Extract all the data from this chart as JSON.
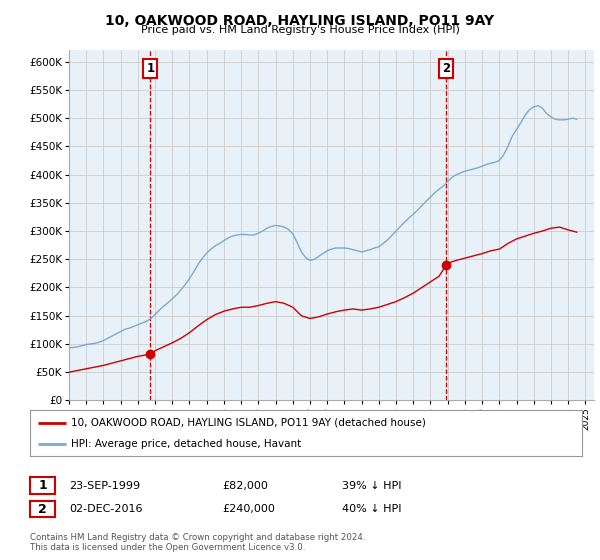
{
  "title": "10, OAKWOOD ROAD, HAYLING ISLAND, PO11 9AY",
  "subtitle": "Price paid vs. HM Land Registry's House Price Index (HPI)",
  "ylabel_ticks": [
    "£0",
    "£50K",
    "£100K",
    "£150K",
    "£200K",
    "£250K",
    "£300K",
    "£350K",
    "£400K",
    "£450K",
    "£500K",
    "£550K",
    "£600K"
  ],
  "yvalues": [
    0,
    50000,
    100000,
    150000,
    200000,
    250000,
    300000,
    350000,
    400000,
    450000,
    500000,
    550000,
    600000
  ],
  "xlim_start": 1995.0,
  "xlim_end": 2025.5,
  "ylim_min": 0,
  "ylim_max": 620000,
  "transaction1_date": 1999.73,
  "transaction1_price": 82000,
  "transaction2_date": 2016.92,
  "transaction2_price": 240000,
  "legend_line1": "10, OAKWOOD ROAD, HAYLING ISLAND, PO11 9AY (detached house)",
  "legend_line2": "HPI: Average price, detached house, Havant",
  "table_row1": [
    "1",
    "23-SEP-1999",
    "£82,000",
    "39% ↓ HPI"
  ],
  "table_row2": [
    "2",
    "02-DEC-2016",
    "£240,000",
    "40% ↓ HPI"
  ],
  "footnote1": "Contains HM Land Registry data © Crown copyright and database right 2024.",
  "footnote2": "This data is licensed under the Open Government Licence v3.0.",
  "red_color": "#cc0000",
  "blue_color": "#7aabcf",
  "grid_color": "#cccccc",
  "bg_color": "#e8f0f8",
  "vline_color": "#cc0000",
  "hpi_data_x": [
    1995.0,
    1995.25,
    1995.5,
    1995.75,
    1996.0,
    1996.25,
    1996.5,
    1996.75,
    1997.0,
    1997.25,
    1997.5,
    1997.75,
    1998.0,
    1998.25,
    1998.5,
    1998.75,
    1999.0,
    1999.25,
    1999.5,
    1999.75,
    2000.0,
    2000.25,
    2000.5,
    2000.75,
    2001.0,
    2001.25,
    2001.5,
    2001.75,
    2002.0,
    2002.25,
    2002.5,
    2002.75,
    2003.0,
    2003.25,
    2003.5,
    2003.75,
    2004.0,
    2004.25,
    2004.5,
    2004.75,
    2005.0,
    2005.25,
    2005.5,
    2005.75,
    2006.0,
    2006.25,
    2006.5,
    2006.75,
    2007.0,
    2007.25,
    2007.5,
    2007.75,
    2008.0,
    2008.25,
    2008.5,
    2008.75,
    2009.0,
    2009.25,
    2009.5,
    2009.75,
    2010.0,
    2010.25,
    2010.5,
    2010.75,
    2011.0,
    2011.25,
    2011.5,
    2011.75,
    2012.0,
    2012.25,
    2012.5,
    2012.75,
    2013.0,
    2013.25,
    2013.5,
    2013.75,
    2014.0,
    2014.25,
    2014.5,
    2014.75,
    2015.0,
    2015.25,
    2015.5,
    2015.75,
    2016.0,
    2016.25,
    2016.5,
    2016.75,
    2017.0,
    2017.25,
    2017.5,
    2017.75,
    2018.0,
    2018.25,
    2018.5,
    2018.75,
    2019.0,
    2019.25,
    2019.5,
    2019.75,
    2020.0,
    2020.25,
    2020.5,
    2020.75,
    2021.0,
    2021.25,
    2021.5,
    2021.75,
    2022.0,
    2022.25,
    2022.5,
    2022.75,
    2023.0,
    2023.25,
    2023.5,
    2023.75,
    2024.0,
    2024.25,
    2024.5
  ],
  "hpi_data_y": [
    93000,
    94000,
    95000,
    97000,
    99000,
    100000,
    101000,
    103000,
    106000,
    110000,
    114000,
    118000,
    122000,
    126000,
    128000,
    131000,
    134000,
    137000,
    140000,
    145000,
    152000,
    160000,
    167000,
    173000,
    180000,
    187000,
    196000,
    205000,
    216000,
    228000,
    241000,
    252000,
    261000,
    268000,
    274000,
    278000,
    283000,
    288000,
    291000,
    293000,
    294000,
    294000,
    293000,
    293000,
    296000,
    300000,
    305000,
    308000,
    310000,
    309000,
    307000,
    303000,
    295000,
    280000,
    263000,
    253000,
    248000,
    250000,
    255000,
    260000,
    265000,
    268000,
    270000,
    270000,
    270000,
    269000,
    267000,
    265000,
    263000,
    265000,
    267000,
    270000,
    272000,
    278000,
    284000,
    292000,
    300000,
    308000,
    316000,
    323000,
    330000,
    337000,
    345000,
    353000,
    360000,
    368000,
    374000,
    380000,
    388000,
    395000,
    400000,
    403000,
    406000,
    408000,
    410000,
    412000,
    415000,
    418000,
    420000,
    422000,
    425000,
    435000,
    450000,
    468000,
    480000,
    492000,
    505000,
    515000,
    520000,
    522000,
    518000,
    508000,
    502000,
    498000,
    497000,
    497000,
    498000,
    500000,
    498000
  ],
  "price_paid_x": [
    1995.0,
    1995.5,
    1996.0,
    1996.5,
    1997.0,
    1997.5,
    1998.0,
    1998.5,
    1999.0,
    1999.73,
    2000.0,
    2000.5,
    2001.0,
    2001.5,
    2002.0,
    2002.5,
    2003.0,
    2003.5,
    2004.0,
    2004.5,
    2005.0,
    2005.5,
    2006.0,
    2006.5,
    2007.0,
    2007.5,
    2008.0,
    2008.5,
    2009.0,
    2009.5,
    2010.0,
    2010.5,
    2011.0,
    2011.5,
    2012.0,
    2012.5,
    2013.0,
    2013.5,
    2014.0,
    2014.5,
    2015.0,
    2015.5,
    2016.0,
    2016.5,
    2016.92,
    2017.0,
    2017.5,
    2018.0,
    2018.5,
    2019.0,
    2019.5,
    2020.0,
    2020.5,
    2021.0,
    2021.5,
    2022.0,
    2022.5,
    2023.0,
    2023.5,
    2024.0,
    2024.5
  ],
  "price_paid_y": [
    50000,
    53000,
    56000,
    59000,
    62000,
    66000,
    70000,
    74000,
    78000,
    82000,
    88000,
    95000,
    102000,
    110000,
    120000,
    132000,
    143000,
    152000,
    158000,
    162000,
    165000,
    165000,
    168000,
    172000,
    175000,
    172000,
    165000,
    150000,
    145000,
    148000,
    153000,
    157000,
    160000,
    162000,
    160000,
    162000,
    165000,
    170000,
    175000,
    182000,
    190000,
    200000,
    210000,
    220000,
    240000,
    243000,
    248000,
    252000,
    256000,
    260000,
    265000,
    268000,
    278000,
    286000,
    291000,
    296000,
    300000,
    305000,
    307000,
    302000,
    298000
  ]
}
